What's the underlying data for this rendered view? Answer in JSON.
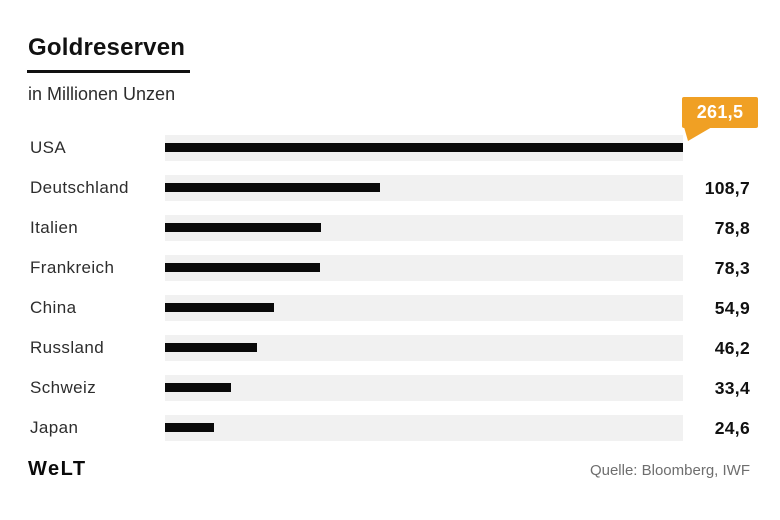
{
  "header": {
    "title": "Goldreserven",
    "subtitle": "in Millionen Unzen"
  },
  "chart_data": {
    "type": "bar",
    "orientation": "horizontal",
    "title": "Goldreserven",
    "subtitle": "in Millionen Unzen",
    "categories": [
      "USA",
      "Deutschland",
      "Italien",
      "Frankreich",
      "China",
      "Russland",
      "Schweiz",
      "Japan"
    ],
    "values": [
      261.5,
      108.7,
      78.8,
      78.3,
      54.9,
      46.2,
      33.4,
      24.6
    ],
    "value_labels": [
      "261,5",
      "108,7",
      "78,8",
      "78,3",
      "54,9",
      "46,2",
      "33,4",
      "24,6"
    ],
    "xlim": [
      0,
      261.5
    ],
    "max_value": 261.5,
    "grid": false,
    "legend": false,
    "highlight": {
      "category": "USA",
      "label": "261,5",
      "style": "callout-badge"
    },
    "colors": {
      "bar": "#0a0a0a",
      "track": "#f1f1f1",
      "badge": "#F0A024",
      "badge_text": "#ffffff"
    }
  },
  "footer": {
    "logo": "WeLT",
    "source": "Quelle: Bloomberg, IWF"
  }
}
